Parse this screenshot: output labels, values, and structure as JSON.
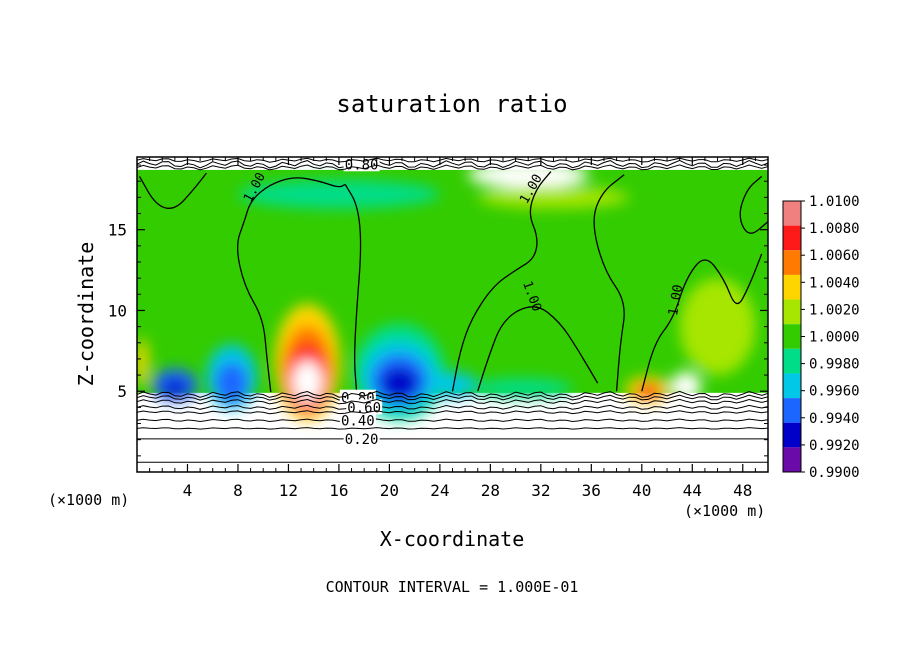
{
  "chart_data": {
    "type": "heatmap",
    "title": "saturation ratio",
    "xlabel": "X-coordinate",
    "ylabel": "Z-coordinate",
    "x_unit_left": "(×1000 m)",
    "x_unit_right": "(×1000 m)",
    "footer": "CONTOUR INTERVAL = 1.000E-01",
    "xlim": [
      0,
      50
    ],
    "ylim": [
      0,
      19.5
    ],
    "x_ticks": [
      4,
      8,
      12,
      16,
      20,
      24,
      28,
      32,
      36,
      40,
      44,
      48
    ],
    "x_tick_labels": [
      "4",
      "8",
      "12",
      "16",
      "20",
      "24",
      "28",
      "32",
      "36",
      "40",
      "44",
      "48"
    ],
    "y_ticks": [
      5,
      10,
      15
    ],
    "y_tick_labels": [
      "5",
      "10",
      "15"
    ],
    "colorbar": {
      "labels": [
        "1.0100",
        "1.0080",
        "1.0060",
        "1.0040",
        "1.0020",
        "1.0000",
        "0.9980",
        "0.9960",
        "0.9940",
        "0.9920",
        "0.9900"
      ],
      "colors": [
        "#f08080",
        "#ff1a1a",
        "#ff7a00",
        "#ffd500",
        "#a6e600",
        "#33cc00",
        "#00dd88",
        "#00c8e6",
        "#1a66ff",
        "#0000c8",
        "#6a0aa8"
      ]
    },
    "fill_bounds": {
      "x": [
        0,
        50
      ],
      "z": [
        4.9,
        18.7
      ]
    },
    "blobs": [
      {
        "x": 13.5,
        "z": 6.8,
        "rx": 2.6,
        "rz": 3.6,
        "color": "#ffd500"
      },
      {
        "x": 13.5,
        "z": 6.3,
        "rx": 2.0,
        "rz": 2.8,
        "color": "#ff7a00"
      },
      {
        "x": 13.5,
        "z": 5.9,
        "rx": 1.6,
        "rz": 2.1,
        "color": "#ff1a1a"
      },
      {
        "x": 13.5,
        "z": 5.6,
        "rx": 1.2,
        "rz": 1.3,
        "color": "#ffffff"
      },
      {
        "x": 40.5,
        "z": 5.1,
        "rx": 1.8,
        "rz": 0.8,
        "color": "#ffd500"
      },
      {
        "x": 40.5,
        "z": 5.0,
        "rx": 1.0,
        "rz": 0.45,
        "color": "#ff1a1a"
      },
      {
        "x": 20.8,
        "z": 6.2,
        "rx": 3.6,
        "rz": 3.0,
        "color": "#00dd88"
      },
      {
        "x": 20.8,
        "z": 5.9,
        "rx": 3.0,
        "rz": 2.2,
        "color": "#00c8e6"
      },
      {
        "x": 20.8,
        "z": 5.7,
        "rx": 2.2,
        "rz": 1.6,
        "color": "#1a66ff"
      },
      {
        "x": 20.8,
        "z": 5.5,
        "rx": 1.5,
        "rz": 1.0,
        "color": "#0000c8"
      },
      {
        "x": 7.5,
        "z": 5.9,
        "rx": 2.0,
        "rz": 2.0,
        "color": "#00c8e6"
      },
      {
        "x": 7.5,
        "z": 5.5,
        "rx": 1.3,
        "rz": 1.3,
        "color": "#1a66ff"
      },
      {
        "x": 3.0,
        "z": 5.4,
        "rx": 1.8,
        "rz": 1.0,
        "color": "#1a66ff"
      },
      {
        "x": 3.0,
        "z": 5.2,
        "rx": 1.0,
        "rz": 0.5,
        "color": "#0000c8"
      },
      {
        "x": 25.0,
        "z": 5.4,
        "rx": 2.0,
        "rz": 0.8,
        "color": "#00c8e6"
      },
      {
        "x": 30.5,
        "z": 5.2,
        "rx": 4.0,
        "rz": 0.6,
        "color": "#00dd88"
      },
      {
        "x": 43.5,
        "z": 5.3,
        "rx": 1.2,
        "rz": 0.9,
        "color": "#ffffff"
      },
      {
        "x": 0.4,
        "z": 6.8,
        "rx": 0.5,
        "rz": 1.5,
        "color": "#ffd500"
      },
      {
        "x": 16.0,
        "z": 17.2,
        "rx": 8.0,
        "rz": 0.9,
        "color": "#00dd88"
      },
      {
        "x": 31.0,
        "z": 18.4,
        "rx": 4.8,
        "rz": 0.8,
        "color": "#ffffff"
      },
      {
        "x": 33.0,
        "z": 17.0,
        "rx": 6.0,
        "rz": 0.7,
        "color": "#a6e600"
      },
      {
        "x": 46.0,
        "z": 9.0,
        "rx": 3.0,
        "rz": 3.0,
        "color": "#a6e600"
      }
    ],
    "one_contours": [
      {
        "label": "1.00",
        "label_at": [
          9.6,
          17.5
        ],
        "label_rotate": -62,
        "points": [
          [
            10.6,
            4.95
          ],
          [
            10.3,
            7
          ],
          [
            10.0,
            9.5
          ],
          [
            8.5,
            11.5
          ],
          [
            7.8,
            14
          ],
          [
            8.5,
            15.5
          ],
          [
            9.0,
            16.8
          ],
          [
            10.5,
            17.8
          ],
          [
            12.5,
            18.3
          ],
          [
            14.5,
            18.0
          ],
          [
            16.0,
            17.6
          ],
          [
            16.5,
            17.8
          ]
        ]
      },
      {
        "label": "",
        "label_at": [
          0,
          0
        ],
        "label_rotate": 0,
        "points": [
          [
            16.5,
            17.8
          ],
          [
            17.5,
            16.5
          ],
          [
            17.8,
            14
          ],
          [
            17.4,
            10
          ],
          [
            17.2,
            7
          ],
          [
            17.4,
            5.0
          ]
        ]
      },
      {
        "label": "",
        "label_at": [
          0,
          0
        ],
        "label_rotate": 0,
        "points": [
          [
            0.2,
            18.3
          ],
          [
            1.5,
            16.5
          ],
          [
            3.0,
            16.2
          ],
          [
            4.5,
            17.5
          ],
          [
            5.5,
            18.5
          ]
        ]
      },
      {
        "label": "1.00",
        "label_at": [
          31.5,
          17.4
        ],
        "label_rotate": -60,
        "points": [
          [
            25.0,
            5.0
          ],
          [
            25.6,
            7.5
          ],
          [
            26.5,
            9.5
          ],
          [
            28.2,
            11.5
          ],
          [
            30.0,
            12.5
          ],
          [
            31.5,
            13.2
          ],
          [
            31.8,
            14.5
          ],
          [
            31.0,
            16
          ],
          [
            31.6,
            17.5
          ],
          [
            32.8,
            18.6
          ]
        ]
      },
      {
        "label": "1.00",
        "label_at": [
          31.0,
          10.8
        ],
        "label_rotate": 70,
        "points": [
          [
            27.0,
            5.0
          ],
          [
            27.8,
            7.0
          ],
          [
            29.0,
            9.5
          ],
          [
            31.5,
            10.5
          ],
          [
            33.5,
            9.3
          ],
          [
            35.0,
            7.5
          ],
          [
            36.5,
            5.5
          ]
        ]
      },
      {
        "label": "1.00",
        "label_at": [
          43.0,
          10.6
        ],
        "label_rotate": -80,
        "points": [
          [
            38.0,
            5.0
          ],
          [
            38.3,
            8.0
          ],
          [
            38.8,
            10.5
          ],
          [
            37.0,
            12.5
          ],
          [
            36.0,
            15.5
          ],
          [
            36.8,
            17.3
          ],
          [
            38.6,
            18.4
          ]
        ]
      },
      {
        "label": "",
        "label_at": [
          0,
          0
        ],
        "label_rotate": 0,
        "points": [
          [
            40.0,
            5.0
          ],
          [
            41.0,
            8.0
          ],
          [
            42.5,
            9.5
          ],
          [
            43.5,
            12.0
          ],
          [
            45.0,
            13.5
          ],
          [
            46.5,
            12.0
          ],
          [
            47.5,
            10.0
          ],
          [
            48.5,
            11.5
          ],
          [
            49.5,
            13.5
          ]
        ]
      },
      {
        "label": "",
        "label_at": [
          0,
          0
        ],
        "label_rotate": 0,
        "points": [
          [
            50.0,
            15.5
          ],
          [
            48.5,
            14.5
          ],
          [
            47.6,
            15.8
          ],
          [
            48.3,
            17.5
          ],
          [
            49.5,
            18.3
          ]
        ]
      }
    ],
    "low_contours": [
      {
        "label": "0.80",
        "z": 4.6,
        "label_x": 17.5,
        "wave": 0.1
      },
      {
        "label": "0.60",
        "z": 4.0,
        "label_x": 18.0,
        "wave": 0.08
      },
      {
        "label": "0.40",
        "z": 3.2,
        "label_x": 17.5,
        "wave": 0.05
      },
      {
        "label": "0.20",
        "z": 2.05,
        "label_x": 17.8,
        "wave": 0.0
      },
      {
        "label": "",
        "z": 4.8,
        "label_x": 0,
        "wave": 0.12
      },
      {
        "label": "",
        "z": 4.35,
        "label_x": 0,
        "wave": 0.09
      },
      {
        "label": "",
        "z": 3.7,
        "label_x": 0,
        "wave": 0.06
      },
      {
        "label": "",
        "z": 2.7,
        "label_x": 0,
        "wave": 0.03
      },
      {
        "label": "",
        "z": 0.6,
        "label_x": 0,
        "wave": 0.0
      }
    ],
    "top_contours": [
      {
        "label": "0.80",
        "z": 19.05,
        "label_x": 17.8,
        "wave": 0.15
      },
      {
        "label": "",
        "z": 19.3,
        "label_x": 0,
        "wave": 0.08
      },
      {
        "label": "",
        "z": 18.85,
        "label_x": 0,
        "wave": 0.1
      }
    ]
  }
}
